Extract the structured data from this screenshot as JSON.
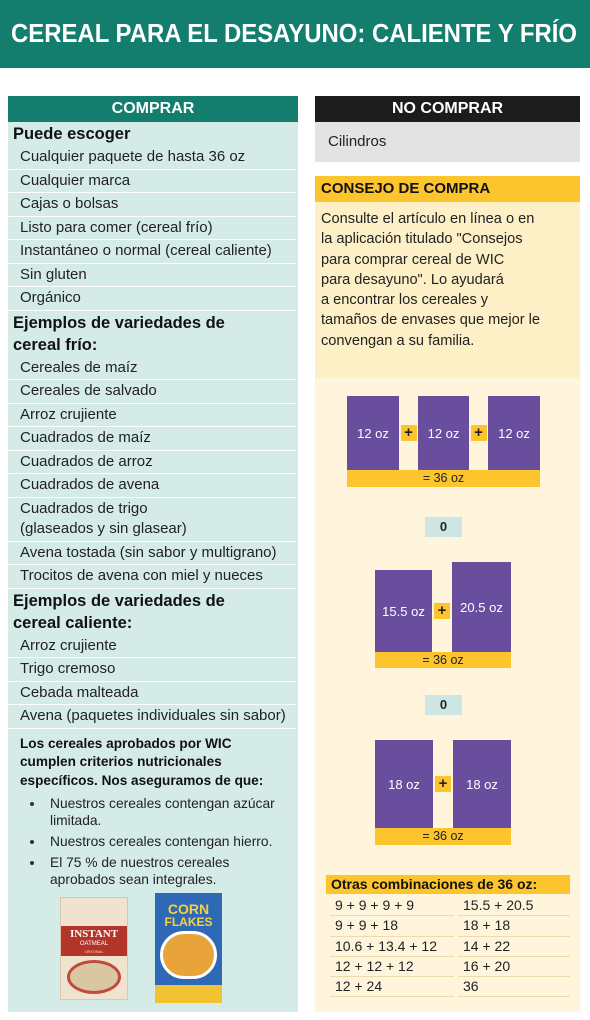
{
  "header": {
    "title": "CEREAL PARA EL DESAYUNO: CALIENTE Y FRÍO"
  },
  "buy": {
    "title": "COMPRAR",
    "sections": [
      {
        "heading": "Puede escoger",
        "items": [
          "Cualquier paquete de hasta 36 oz",
          "Cualquier marca",
          "Cajas o bolsas",
          "Listo para comer (cereal frío)",
          "Instantáneo o normal (cereal caliente)",
          "Sin gluten",
          "Orgánico"
        ]
      },
      {
        "heading": "Ejemplos de variedades de\ncereal frío:",
        "items": [
          "Cereales de maíz",
          "Cereales de salvado",
          "Arroz crujiente",
          "Cuadrados de maíz",
          "Cuadrados de arroz",
          "Cuadrados de avena",
          "Cuadrados de trigo\n(glaseados y sin glasear)",
          "Avena tostada (sin sabor y multigrano)",
          "Trocitos de avena con miel y nueces"
        ]
      },
      {
        "heading": "Ejemplos de variedades de\ncereal caliente:",
        "items": [
          "Arroz crujiente",
          "Trigo cremoso",
          "Cebada malteada",
          "Avena (paquetes individuales sin sabor)"
        ]
      }
    ],
    "note": "Los cereales aprobados por WIC\ncumplen criterios nutricionales\nespecíficos. Nos aseguramos de que:",
    "bullets": [
      "Nuestros cereales contengan azúcar\nlimitada.",
      "Nuestros cereales contengan hierro.",
      "El 75 % de nuestros cereales\naprobados sean integrales."
    ],
    "images": [
      {
        "brand": "INSTANT",
        "product": "OATMEAL",
        "variety": "ORIGINAL"
      },
      {
        "brand": "CORN",
        "product": "FLAKES"
      }
    ]
  },
  "dont_buy": {
    "title": "NO COMPRAR",
    "items": [
      "Cilindros"
    ]
  },
  "tip": {
    "title": "CONSEJO DE COMPRA",
    "text": "Consulte el artículo en línea o en\nla aplicación titulado \"Consejos\npara comprar cereal de WIC\npara desayuno\". Lo ayudará\na encontrar los cereales y\ntamaños de envases que mejor le\nconvengan a su familia."
  },
  "examples": [
    {
      "boxes": [
        "12 oz",
        "12 oz",
        "12 oz"
      ],
      "plus": "+",
      "total": "= 36 oz"
    },
    {
      "boxes": [
        "15.5 oz",
        "20.5 oz"
      ],
      "plus": "+",
      "total": "= 36 oz"
    },
    {
      "boxes": [
        "18 oz",
        "18 oz"
      ],
      "plus": "+",
      "total": "= 36 oz"
    }
  ],
  "separators": [
    "0",
    "0"
  ],
  "combinations": {
    "title": "Otras combinaciones de 36 oz:",
    "rows": [
      [
        "9 + 9 + 9 + 9",
        "15.5 + 20.5"
      ],
      [
        "9 + 9 + 18",
        "18 + 18"
      ],
      [
        "10.6 + 13.4 + 12",
        "14 + 22"
      ],
      [
        "12 + 12 + 12",
        "16 + 20"
      ],
      [
        "12 + 24",
        "36"
      ]
    ]
  }
}
